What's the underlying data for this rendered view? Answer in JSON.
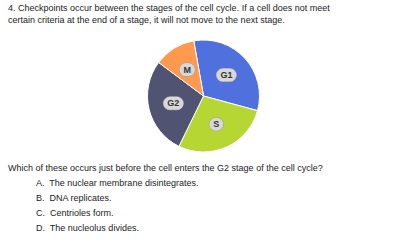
{
  "chart_data": {
    "type": "pie",
    "title": "4. Checkpoints occur between the stages of the cell cycle. If a cell does not meet",
    "subtitle": "certain criteria at the end of a stage, it will not move to the next stage.",
    "categories": [
      "G1",
      "S",
      "G2",
      "M"
    ],
    "values": [
      0.32,
      0.28,
      0.28,
      0.12
    ],
    "annotations": [
      "Which of these occurs just before the cell enters the G2 stage of the cell cycle?",
      "A.  The nuclear membrane disintegrates.",
      "B.  DNA replicates.",
      "C.  Centrioles form.",
      "D.  The nucleolus divides."
    ]
  }
}
